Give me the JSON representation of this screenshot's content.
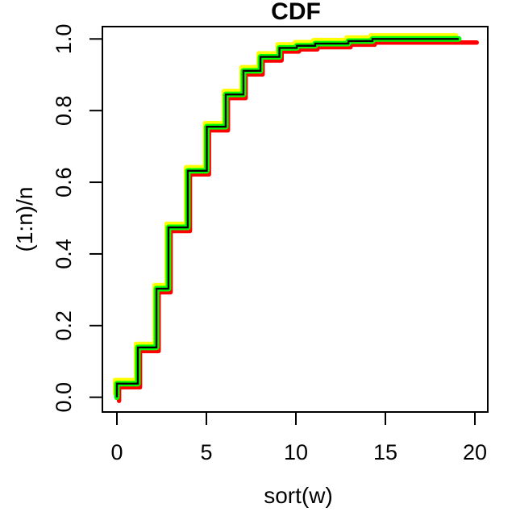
{
  "title": "CDF",
  "x_axis": {
    "label": "sort(w)",
    "tick_labels": [
      "0",
      "5",
      "10",
      "15",
      "20"
    ],
    "tick_values": [
      0,
      5,
      10,
      15,
      20
    ]
  },
  "y_axis": {
    "label": "(1:n)/n",
    "tick_labels": [
      "0.0",
      "0.2",
      "0.4",
      "0.6",
      "0.8",
      "1.0"
    ],
    "tick_values": [
      0,
      0.2,
      0.4,
      0.6,
      0.8,
      1.0
    ]
  },
  "chart_data": {
    "type": "line",
    "subtype": "ecdf-step-function",
    "title": "CDF",
    "xlabel": "sort(w)",
    "ylabel": "(1:n)/n",
    "xlim": [
      0,
      20
    ],
    "ylim": [
      0,
      1
    ],
    "grid": false,
    "legend": null,
    "start_y": 0,
    "step_x": [
      0,
      1.17,
      2.21,
      2.88,
      3.96,
      5.02,
      6.08,
      7.07,
      8.02,
      9.08,
      10.05,
      11.08,
      12.93,
      14.28
    ],
    "step_levels": [
      0.038,
      0.139,
      0.303,
      0.474,
      0.632,
      0.755,
      0.845,
      0.911,
      0.95,
      0.975,
      0.981,
      0.987,
      0.994,
      1.0
    ],
    "series": [
      {
        "name": "red",
        "color": "#FF0000",
        "x_offset": 0.12,
        "y_offset": -0.01,
        "line_width": 5.5,
        "x_end": 20.1
      },
      {
        "name": "yellow",
        "color": "#FFFF00",
        "x_offset": -0.1,
        "y_offset": 0.01,
        "line_width": 5.5,
        "x_end": 18.95
      },
      {
        "name": "green",
        "color": "#00FF00",
        "x_offset": 0.0,
        "y_offset": 0.0,
        "line_width": 7.0,
        "x_end": 19.1
      },
      {
        "name": "black",
        "color": "#000000",
        "x_offset": 0.0,
        "y_offset": 0.0,
        "line_width": 2.4,
        "x_end": 19.1
      }
    ]
  }
}
